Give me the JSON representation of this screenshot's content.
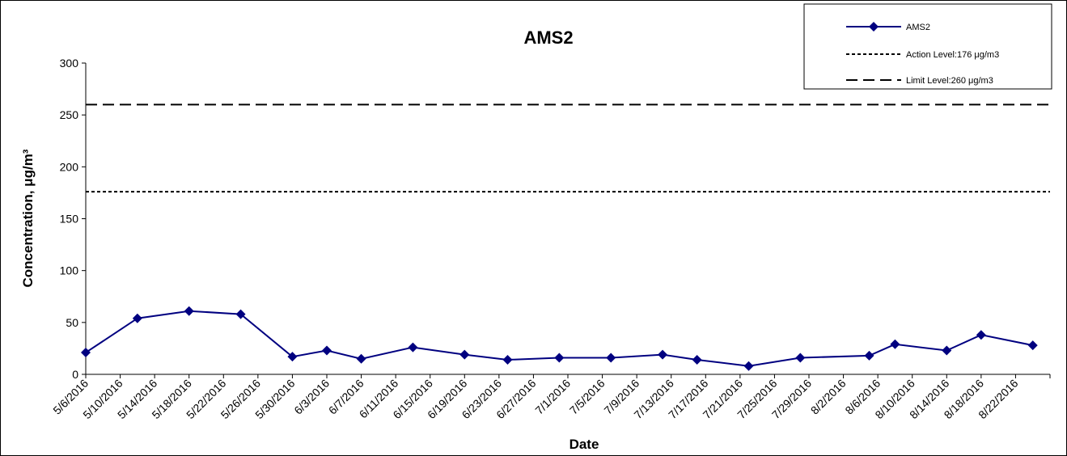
{
  "chart_data": {
    "type": "line",
    "title": "AMS2",
    "xlabel": "Date",
    "ylabel": "Concentration, μg/m³",
    "ylim": [
      0,
      300
    ],
    "yticks": [
      0,
      50,
      100,
      150,
      200,
      250,
      300
    ],
    "xlim": [
      "2016-05-06",
      "2016-08-26"
    ],
    "xtick_labels": [
      "5/6/2016",
      "5/10/2016",
      "5/14/2016",
      "5/18/2016",
      "5/22/2016",
      "5/26/2016",
      "5/30/2016",
      "6/3/2016",
      "6/7/2016",
      "6/11/2016",
      "6/15/2016",
      "6/19/2016",
      "6/23/2016",
      "6/27/2016",
      "7/1/2016",
      "7/5/2016",
      "7/9/2016",
      "7/13/2016",
      "7/17/2016",
      "7/21/2016",
      "7/25/2016",
      "7/29/2016",
      "8/2/2016",
      "8/6/2016",
      "8/10/2016",
      "8/14/2016",
      "8/18/2016",
      "8/22/2016"
    ],
    "grid": false,
    "legend_position": "top-right",
    "series": [
      {
        "name": "AMS2",
        "color": "#000080",
        "marker": "diamond",
        "x": [
          "2016-05-06",
          "2016-05-12",
          "2016-05-18",
          "2016-05-24",
          "2016-05-30",
          "2016-06-03",
          "2016-06-07",
          "2016-06-13",
          "2016-06-19",
          "2016-06-24",
          "2016-06-30",
          "2016-07-06",
          "2016-07-12",
          "2016-07-16",
          "2016-07-22",
          "2016-07-28",
          "2016-08-05",
          "2016-08-08",
          "2016-08-14",
          "2016-08-18",
          "2016-08-24"
        ],
        "values": [
          21,
          54,
          61,
          58,
          17,
          23,
          15,
          26,
          19,
          14,
          16,
          16,
          19,
          14,
          8,
          16,
          18,
          29,
          23,
          38,
          28
        ]
      },
      {
        "name": "Action Level:176 μg/m3",
        "color": "#000000",
        "style": "short-dash",
        "constant": 176
      },
      {
        "name": "Limit Level:260 μg/m3",
        "color": "#000000",
        "style": "long-dash",
        "constant": 260
      }
    ]
  }
}
